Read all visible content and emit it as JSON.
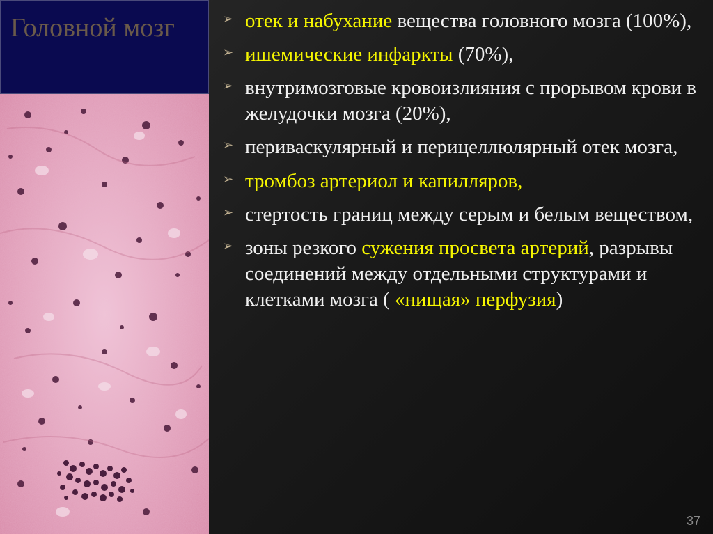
{
  "title": "Головной мозг",
  "bullets": [
    {
      "segments": [
        {
          "text": "отек и набухание",
          "cls": "y"
        },
        {
          "text": "  вещества головного мозга (100%),",
          "cls": "w"
        }
      ]
    },
    {
      "segments": [
        {
          "text": "ишемические инфаркты",
          "cls": "y"
        },
        {
          "text": " (70%),",
          "cls": "w"
        }
      ]
    },
    {
      "segments": [
        {
          "text": "внутримозговые кровоизлияния с прорывом крови в желудочки мозга (20%),",
          "cls": "w"
        }
      ]
    },
    {
      "segments": [
        {
          "text": "периваскулярный и перицеллюлярный отек мозга,",
          "cls": "w"
        }
      ]
    },
    {
      "segments": [
        {
          "text": "тромбоз артериол и капилляров,",
          "cls": "y"
        }
      ]
    },
    {
      "segments": [
        {
          "text": "стертость границ между серым и белым веществом,",
          "cls": "w"
        }
      ]
    },
    {
      "segments": [
        {
          "text": "зоны резкого ",
          "cls": "w"
        },
        {
          "text": "сужения просвета артерий",
          "cls": "y"
        },
        {
          "text": ", разрывы соединений между отдельными структурами и клетками мозга ( ",
          "cls": "w"
        },
        {
          "text": "«нищая» перфузия",
          "cls": "y"
        },
        {
          "text": ")",
          "cls": "w"
        }
      ]
    }
  ],
  "page_number": "37",
  "colors": {
    "background_gradient_start": "#2a2a2a",
    "background_gradient_end": "#0f0f0f",
    "title_box_bg": "#0a0a50",
    "title_text": "#6a5a4a",
    "bullet_marker": "#c0b090",
    "text_white": "#f0f0f0",
    "text_yellow": "#f5f500",
    "page_num": "#888888",
    "histology_base": "#d88aa8",
    "histology_light": "#f0c5d8",
    "histology_dark": "#7a3a5a",
    "histology_nucleus": "#4a1a3a"
  },
  "typography": {
    "title_fontsize": 38,
    "bullet_fontsize": 29,
    "page_num_fontsize": 18,
    "font_family": "Times New Roman"
  },
  "layout": {
    "slide_width": 1024,
    "slide_height": 767,
    "left_col_width": 300,
    "title_box_height": 135
  }
}
